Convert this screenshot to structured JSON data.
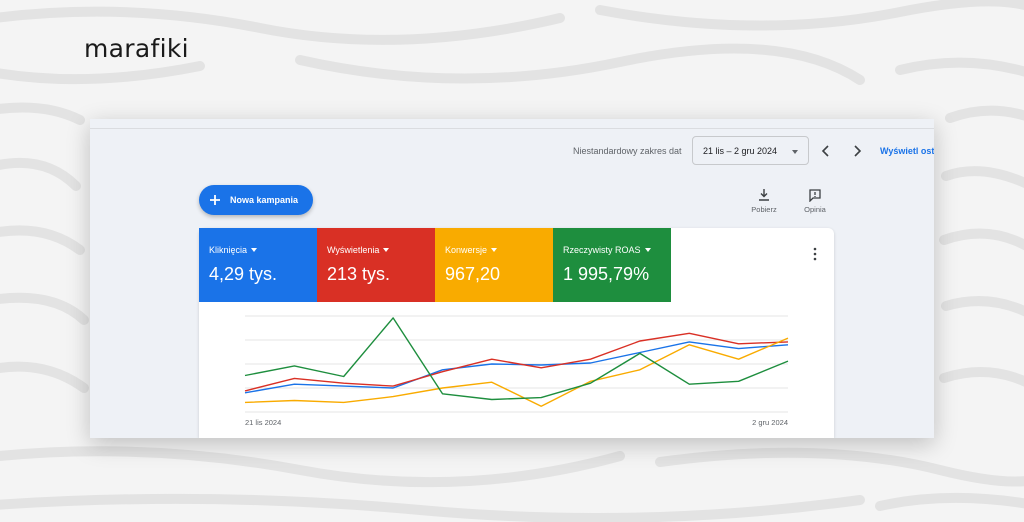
{
  "brand": "marafiki",
  "toolbar": {
    "date_range_label": "Niestandardowy zakres dat",
    "date_range_value": "21 lis – 2 gru 2024",
    "view_link": "Wyświetl ost"
  },
  "actions": {
    "new_campaign": "Nowa kampania",
    "download": "Pobierz",
    "feedback": "Opinia"
  },
  "metrics": [
    {
      "label": "Kliknięcia",
      "value": "4,29 tys.",
      "color": "#1a73e8"
    },
    {
      "label": "Wyświetlenia",
      "value": "213 tys.",
      "color": "#d93025"
    },
    {
      "label": "Konwersje",
      "value": "967,20",
      "color": "#f9ab00"
    },
    {
      "label": "Rzeczywisty ROAS",
      "value": "1 995,79%",
      "color": "#1e8e3e"
    }
  ],
  "chart_data": {
    "type": "line",
    "x_tick_labels": [
      "21 lis 2024",
      "2 gru 2024"
    ],
    "grid": true,
    "series": [
      {
        "color": "#1a73e8",
        "values": [
          0.2,
          0.29,
          0.27,
          0.25,
          0.44,
          0.5,
          0.49,
          0.51,
          0.62,
          0.73,
          0.66,
          0.7
        ]
      },
      {
        "color": "#d93025",
        "values": [
          0.22,
          0.35,
          0.3,
          0.27,
          0.42,
          0.55,
          0.46,
          0.55,
          0.74,
          0.82,
          0.71,
          0.73
        ]
      },
      {
        "color": "#f9ab00",
        "values": [
          0.1,
          0.12,
          0.1,
          0.16,
          0.25,
          0.31,
          0.06,
          0.32,
          0.44,
          0.7,
          0.55,
          0.77
        ]
      },
      {
        "color": "#1e8e3e",
        "values": [
          0.38,
          0.48,
          0.37,
          0.98,
          0.19,
          0.13,
          0.15,
          0.3,
          0.61,
          0.29,
          0.32,
          0.53
        ]
      }
    ]
  }
}
